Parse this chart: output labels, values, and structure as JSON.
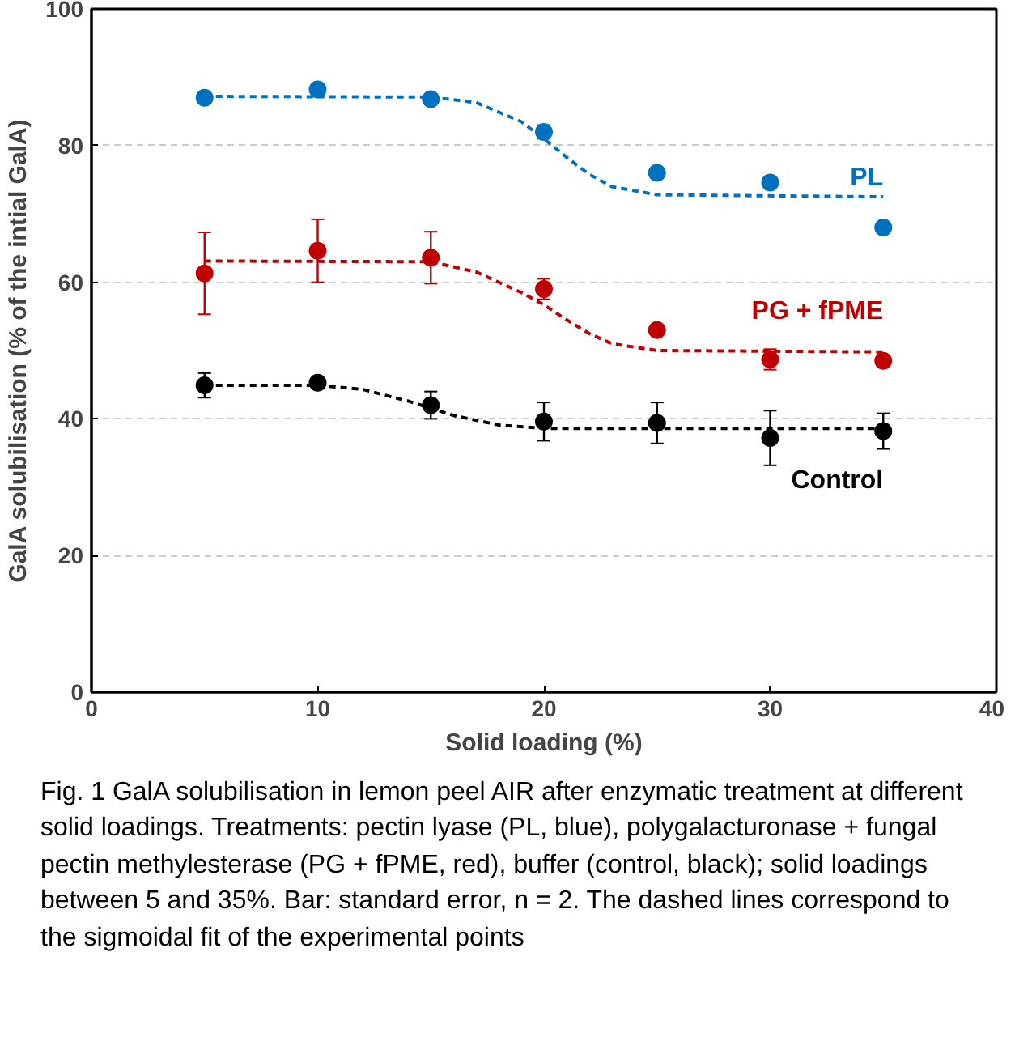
{
  "chart_data": {
    "type": "scatter",
    "xlabel": "Solid loading (%)",
    "ylabel": "GalA solubilisation (% of the intial GalA)",
    "x": [
      5,
      10,
      15,
      20,
      25,
      30,
      35
    ],
    "xlim": [
      0,
      40
    ],
    "xticks": [
      0,
      10,
      20,
      30,
      40
    ],
    "ylim": [
      0,
      100
    ],
    "yticks": [
      0,
      20,
      40,
      60,
      80,
      100
    ],
    "grid": "y",
    "marker": "circle",
    "legend": false,
    "series": [
      {
        "name": "PL",
        "color": "#0070c0",
        "values": [
          87,
          88.2,
          86.8,
          82,
          76,
          74.6,
          68
        ],
        "errors": [
          null,
          null,
          null,
          1,
          null,
          null,
          null
        ]
      },
      {
        "name": "PG + fPME",
        "color": "#c00000",
        "values": [
          61.3,
          64.6,
          63.6,
          59,
          53,
          48.7,
          48.5
        ],
        "errors": [
          6,
          4.6,
          3.8,
          1.5,
          null,
          1.5,
          null
        ]
      },
      {
        "name": "Control",
        "color": "#000000",
        "values": [
          44.9,
          45.3,
          42,
          39.6,
          39.4,
          37.2,
          38.2
        ],
        "errors": [
          1.8,
          null,
          2,
          2.8,
          3,
          4,
          2.6
        ]
      },
      {
        "type": "line",
        "marker": "none",
        "color": "#0070c0",
        "line_style": "dashed",
        "x": [
          5,
          15,
          17,
          19,
          20,
          21,
          22,
          23,
          25,
          35
        ],
        "values": [
          87.2,
          87.1,
          86.3,
          83.5,
          81,
          78.3,
          75.8,
          74,
          72.8,
          72.5
        ]
      },
      {
        "type": "line",
        "marker": "none",
        "color": "#c00000",
        "line_style": "dashed",
        "x": [
          5,
          15,
          17,
          19,
          20,
          21,
          22,
          23,
          25,
          35
        ],
        "values": [
          63.1,
          63,
          61.5,
          58.5,
          56.7,
          54.5,
          52.5,
          51,
          50,
          49.8
        ]
      },
      {
        "type": "line",
        "marker": "none",
        "color": "#000000",
        "line_style": "dashed",
        "x": [
          5,
          10,
          12,
          14,
          16,
          18,
          20,
          35
        ],
        "values": [
          44.9,
          44.9,
          44.3,
          42.6,
          40.5,
          39.1,
          38.6,
          38.6
        ]
      }
    ],
    "annotations": [
      "Fig. 1  GalA solubilisation in lemon peel AIR after enzymatic treatment at different solid loadings. Treatments: pectin lyase (PL, blue), polygalacturonase + fungal pectin methylesterase (PG + fPME, red), buffer (control, black); solid loadings between 5 and 35%. Bar: standard error, n = 2. The dashed lines correspond to the sigmoidal fit of the experimental points"
    ]
  }
}
